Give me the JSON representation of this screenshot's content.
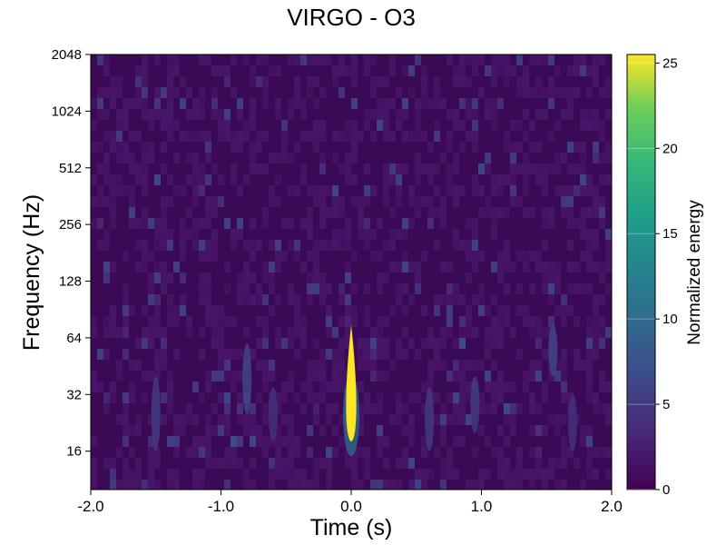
{
  "chart_data": {
    "type": "heatmap",
    "title": "VIRGO - O3",
    "xlabel": "Time (s)",
    "ylabel": "Frequency (Hz)",
    "xlim": [
      -2.0,
      2.0
    ],
    "ylim": [
      10,
      2048
    ],
    "yscale": "log2",
    "x_ticks": [
      {
        "value": -2.0,
        "label": "-2.0"
      },
      {
        "value": -1.0,
        "label": "-1.0"
      },
      {
        "value": 0.0,
        "label": "0.0"
      },
      {
        "value": 1.0,
        "label": "1.0"
      },
      {
        "value": 2.0,
        "label": "2.0"
      }
    ],
    "y_ticks": [
      {
        "value": 16,
        "label": "16"
      },
      {
        "value": 32,
        "label": "32"
      },
      {
        "value": 64,
        "label": "64"
      },
      {
        "value": 128,
        "label": "128"
      },
      {
        "value": 256,
        "label": "256"
      },
      {
        "value": 512,
        "label": "512"
      },
      {
        "value": 1024,
        "label": "1024"
      },
      {
        "value": 2048,
        "label": "2048"
      }
    ],
    "colormap": "viridis",
    "colorbar": {
      "label": "Normalized energy",
      "range": [
        0,
        25.5
      ],
      "ticks": [
        {
          "value": 0,
          "label": "0"
        },
        {
          "value": 5,
          "label": "5"
        },
        {
          "value": 10,
          "label": "10"
        },
        {
          "value": 15,
          "label": "15"
        },
        {
          "value": 20,
          "label": "20"
        },
        {
          "value": 25,
          "label": "25"
        }
      ]
    },
    "background_energy": 1.0,
    "features": [
      {
        "t": 0.0,
        "f_low": 18,
        "f_high": 75,
        "peak_energy": 25.5
      },
      {
        "t": -1.5,
        "f_low": 16,
        "f_high": 40,
        "peak_energy": 5
      },
      {
        "t": -0.8,
        "f_low": 25,
        "f_high": 60,
        "peak_energy": 6
      },
      {
        "t": -0.6,
        "f_low": 18,
        "f_high": 35,
        "peak_energy": 4
      },
      {
        "t": 0.6,
        "f_low": 16,
        "f_high": 35,
        "peak_energy": 5
      },
      {
        "t": 0.95,
        "f_low": 20,
        "f_high": 40,
        "peak_energy": 5
      },
      {
        "t": 1.55,
        "f_low": 40,
        "f_high": 75,
        "peak_energy": 6
      },
      {
        "t": 1.7,
        "f_low": 16,
        "f_high": 32,
        "peak_energy": 4
      }
    ]
  }
}
